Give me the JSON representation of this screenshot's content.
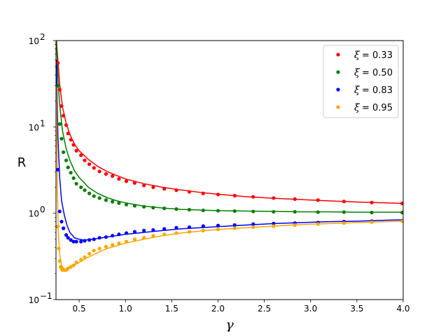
{
  "chart_data": {
    "type": "scatter",
    "title": "",
    "xlabel": "γ",
    "ylabel": "R",
    "xlim": [
      0.25,
      4.0
    ],
    "ylim": [
      0.1,
      100
    ],
    "yscale": "log",
    "grid": false,
    "legend_position": "top-right",
    "x_ticks": [
      0.5,
      1.0,
      1.5,
      2.0,
      2.5,
      3.0,
      3.5,
      4.0
    ],
    "x_tick_labels": [
      "0.5",
      "1.0",
      "1.5",
      "2.0",
      "2.5",
      "3.0",
      "3.5",
      "4.0"
    ],
    "y_ticks": [
      0.1,
      1,
      10,
      100
    ],
    "y_tick_labels": [
      {
        "base": "10",
        "exp": "−1"
      },
      {
        "base": "10",
        "exp": "0"
      },
      {
        "base": "10",
        "exp": "1"
      },
      {
        "base": "10",
        "exp": "2"
      }
    ],
    "series": [
      {
        "name": "ξ = 0.33",
        "legend_symbol": "ξ",
        "legend_value": "= 0.33",
        "color": "#ff0000",
        "points": {
          "x": [
            0.27,
            0.29,
            0.31,
            0.33,
            0.36,
            0.38,
            0.41,
            0.44,
            0.47,
            0.52,
            0.56,
            0.61,
            0.66,
            0.72,
            0.79,
            0.86,
            0.93,
            1.01,
            1.1,
            1.2,
            1.3,
            1.42,
            1.55,
            1.69,
            1.84,
            2.0,
            2.18,
            2.38,
            2.6,
            2.83,
            3.08,
            3.36,
            3.66,
            3.99
          ],
          "y": [
            55,
            27,
            17.5,
            13.5,
            10.5,
            8.4,
            7.1,
            6.2,
            5.3,
            4.7,
            4.1,
            3.7,
            3.35,
            3.05,
            2.85,
            2.7,
            2.5,
            2.35,
            2.25,
            2.1,
            2.0,
            1.92,
            1.85,
            1.77,
            1.7,
            1.65,
            1.6,
            1.55,
            1.5,
            1.46,
            1.42,
            1.37,
            1.33,
            1.3
          ]
        },
        "fit": {
          "x": [
            0.255,
            0.27,
            0.29,
            0.32,
            0.36,
            0.4,
            0.45,
            0.5,
            0.6,
            0.7,
            0.8,
            0.9,
            1.0,
            1.2,
            1.4,
            1.6,
            1.8,
            2.0,
            2.3,
            2.6,
            2.9,
            3.2,
            3.5,
            3.8,
            4.0
          ],
          "y": [
            100,
            60,
            31,
            17,
            11,
            8.2,
            6.3,
            5.3,
            4.2,
            3.5,
            3.05,
            2.75,
            2.5,
            2.2,
            2.0,
            1.86,
            1.75,
            1.66,
            1.56,
            1.49,
            1.44,
            1.39,
            1.35,
            1.32,
            1.3
          ]
        }
      },
      {
        "name": "ξ = 0.50",
        "legend_symbol": "ξ",
        "legend_value": "= 0.50",
        "color": "#008000",
        "points": {
          "x": [
            0.27,
            0.29,
            0.31,
            0.33,
            0.36,
            0.38,
            0.41,
            0.44,
            0.47,
            0.52,
            0.56,
            0.61,
            0.66,
            0.72,
            0.79,
            0.86,
            0.93,
            1.01,
            1.1,
            1.2,
            1.3,
            1.42,
            1.55,
            1.69,
            1.84,
            2.0,
            2.18,
            2.38,
            2.6,
            2.83,
            3.08,
            3.36,
            3.66,
            3.99
          ],
          "y": [
            30,
            10.8,
            7.3,
            5.1,
            4.1,
            3.4,
            2.95,
            2.55,
            2.2,
            2.0,
            1.85,
            1.7,
            1.58,
            1.5,
            1.42,
            1.36,
            1.31,
            1.26,
            1.22,
            1.19,
            1.16,
            1.14,
            1.12,
            1.1,
            1.08,
            1.07,
            1.06,
            1.05,
            1.04,
            1.04,
            1.03,
            1.03,
            1.02,
            1.02
          ]
        },
        "fit": {
          "x": [
            0.255,
            0.27,
            0.29,
            0.32,
            0.36,
            0.4,
            0.45,
            0.5,
            0.6,
            0.7,
            0.8,
            0.9,
            1.0,
            1.2,
            1.4,
            1.6,
            1.8,
            2.0,
            2.3,
            2.6,
            2.9,
            3.2,
            3.5,
            3.8,
            4.0
          ],
          "y": [
            100,
            40,
            18,
            9,
            5.6,
            4.1,
            3.1,
            2.6,
            2.0,
            1.7,
            1.52,
            1.4,
            1.32,
            1.21,
            1.15,
            1.11,
            1.09,
            1.07,
            1.06,
            1.05,
            1.04,
            1.04,
            1.03,
            1.03,
            1.03
          ]
        }
      },
      {
        "name": "ξ = 0.83",
        "legend_symbol": "ξ",
        "legend_value": "= 0.83",
        "color": "#0000ff",
        "points": {
          "x": [
            0.27,
            0.29,
            0.31,
            0.33,
            0.36,
            0.38,
            0.41,
            0.44,
            0.47,
            0.52,
            0.56,
            0.61,
            0.66,
            0.72,
            0.79,
            0.86,
            0.93,
            1.01,
            1.1,
            1.2,
            1.3,
            1.42,
            1.55,
            1.69,
            1.84,
            2.0,
            2.18,
            2.38,
            2.6,
            2.83,
            3.08,
            3.36,
            3.66,
            3.99
          ],
          "y": [
            3.2,
            1.05,
            0.8,
            0.67,
            0.56,
            0.52,
            0.49,
            0.47,
            0.47,
            0.47,
            0.48,
            0.49,
            0.5,
            0.52,
            0.53,
            0.55,
            0.57,
            0.59,
            0.61,
            0.63,
            0.64,
            0.66,
            0.68,
            0.69,
            0.71,
            0.72,
            0.73,
            0.75,
            0.76,
            0.77,
            0.78,
            0.8,
            0.81,
            0.82
          ]
        },
        "fit": {
          "x": [
            0.255,
            0.27,
            0.29,
            0.31,
            0.34,
            0.37,
            0.4,
            0.45,
            0.5,
            0.55,
            0.6,
            0.7,
            0.8,
            0.9,
            1.0,
            1.2,
            1.4,
            1.6,
            1.8,
            2.0,
            2.3,
            2.6,
            2.9,
            3.2,
            3.5,
            3.8,
            4.0
          ],
          "y": [
            60,
            8,
            2.6,
            1.4,
            0.95,
            0.72,
            0.6,
            0.52,
            0.5,
            0.49,
            0.495,
            0.51,
            0.53,
            0.55,
            0.57,
            0.6,
            0.63,
            0.66,
            0.68,
            0.7,
            0.73,
            0.76,
            0.78,
            0.8,
            0.81,
            0.83,
            0.84
          ]
        }
      },
      {
        "name": "ξ = 0.95",
        "legend_symbol": "ξ",
        "legend_value": "= 0.95",
        "color": "#ffa500",
        "points": {
          "x": [
            0.27,
            0.28,
            0.29,
            0.3,
            0.31,
            0.32,
            0.34,
            0.36,
            0.38,
            0.41,
            0.44,
            0.47,
            0.52,
            0.56,
            0.61,
            0.66,
            0.72,
            0.79,
            0.86,
            0.93,
            1.01,
            1.1,
            1.2,
            1.3,
            1.42,
            1.55,
            1.69,
            1.84,
            2.0,
            2.18,
            2.38,
            2.6,
            2.83,
            3.08,
            3.36,
            3.66,
            3.99
          ],
          "y": [
            0.7,
            0.39,
            0.28,
            0.24,
            0.23,
            0.22,
            0.22,
            0.22,
            0.23,
            0.24,
            0.25,
            0.27,
            0.29,
            0.31,
            0.34,
            0.37,
            0.39,
            0.41,
            0.43,
            0.45,
            0.47,
            0.5,
            0.52,
            0.55,
            0.57,
            0.59,
            0.61,
            0.63,
            0.65,
            0.67,
            0.69,
            0.71,
            0.73,
            0.75,
            0.77,
            0.79,
            0.81
          ]
        },
        "fit": {
          "x": [
            0.255,
            0.265,
            0.275,
            0.29,
            0.31,
            0.34,
            0.37,
            0.4,
            0.45,
            0.5,
            0.55,
            0.6,
            0.7,
            0.8,
            0.9,
            1.0,
            1.2,
            1.4,
            1.6,
            1.8,
            2.0,
            2.3,
            2.6,
            2.9,
            3.2,
            3.5,
            3.8,
            4.0
          ],
          "y": [
            30,
            2.0,
            0.6,
            0.33,
            0.25,
            0.225,
            0.225,
            0.23,
            0.25,
            0.27,
            0.29,
            0.31,
            0.35,
            0.39,
            0.42,
            0.45,
            0.5,
            0.55,
            0.59,
            0.62,
            0.65,
            0.68,
            0.71,
            0.74,
            0.76,
            0.78,
            0.8,
            0.81
          ]
        }
      }
    ]
  }
}
